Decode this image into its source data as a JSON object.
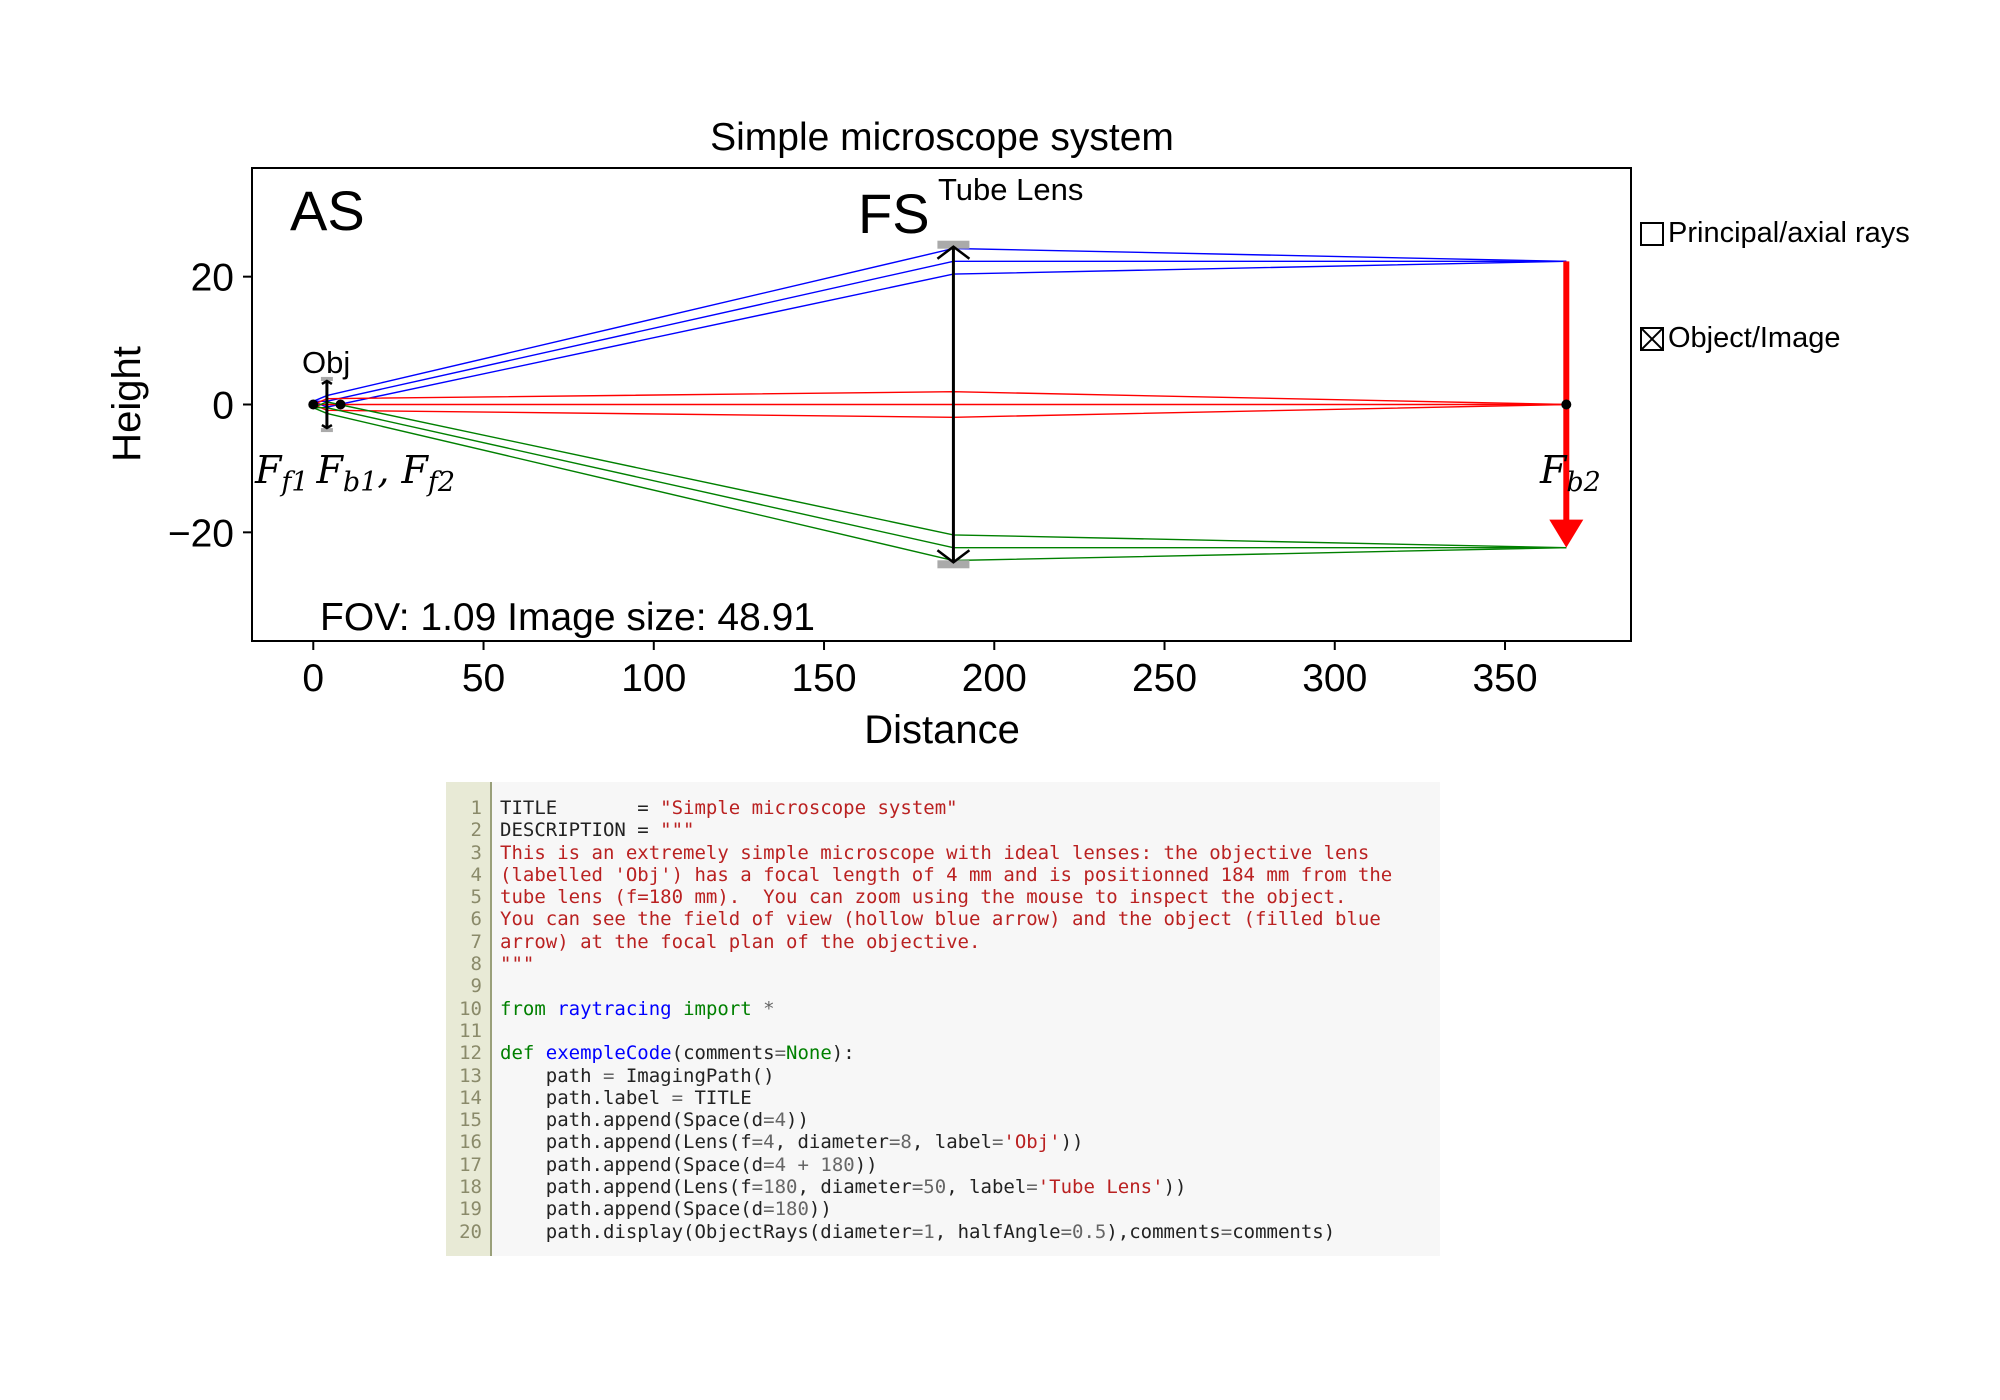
{
  "chart_data": {
    "type": "line",
    "title": "Simple microscope system",
    "xlabel": "Distance",
    "ylabel": "Height",
    "xlim": [
      -18,
      387
    ],
    "ylim": [
      -37,
      37
    ],
    "xticks": [
      0,
      50,
      100,
      150,
      200,
      250,
      300,
      350
    ],
    "yticks": [
      -20,
      0,
      20
    ],
    "xtick_labels": [
      "0",
      "50",
      "100",
      "150",
      "200",
      "250",
      "300",
      "350"
    ],
    "ytick_labels": [
      "−20",
      "0",
      "20"
    ],
    "labels": {
      "as": "AS",
      "fs": "FS",
      "tube_lens": "Tube Lens",
      "obj": "Obj",
      "ff1": "F",
      "ff1_sub": "f1",
      "fb1": "F",
      "fb1_sub": "b1",
      "ff2": ", F",
      "ff2_sub": "f2",
      "fb2": "F",
      "fb2_sub": "b2",
      "fov": "FOV: 1.09 Image size: 48.91"
    },
    "lenses": [
      {
        "name": "Obj",
        "x": 4,
        "diameter": 8
      },
      {
        "name": "Tube Lens",
        "x": 188,
        "diameter": 50
      }
    ],
    "focal_points": [
      0,
      8,
      368
    ],
    "image": {
      "x": 368,
      "y_top": 22.4,
      "y_bottom": -22.4,
      "color": "#ff0000"
    },
    "ray_colors": {
      "blue": "#0000ff",
      "red": "#ff0000",
      "green": "#008000",
      "black": "#000000"
    },
    "ray_bundles": [
      {
        "color": "blue",
        "rays": [
          [
            [
              0,
              0.5
            ],
            [
              4,
              1.4
            ],
            [
              188,
              24.4
            ],
            [
              368,
              22.4
            ]
          ],
          [
            [
              0,
              0.5
            ],
            [
              4,
              0.5
            ],
            [
              188,
              22.4
            ],
            [
              368,
              22.4
            ]
          ],
          [
            [
              0,
              0.5
            ],
            [
              4,
              -0.4
            ],
            [
              188,
              20.4
            ],
            [
              368,
              22.4
            ]
          ]
        ]
      },
      {
        "color": "red",
        "rays": [
          [
            [
              0,
              0
            ],
            [
              4,
              0.9
            ],
            [
              188,
              2.0
            ],
            [
              368,
              0
            ]
          ],
          [
            [
              0,
              0
            ],
            [
              4,
              0
            ],
            [
              188,
              0
            ],
            [
              368,
              0
            ]
          ],
          [
            [
              0,
              0
            ],
            [
              4,
              -0.9
            ],
            [
              188,
              -2.0
            ],
            [
              368,
              0
            ]
          ]
        ]
      },
      {
        "color": "green",
        "rays": [
          [
            [
              0,
              -0.5
            ],
            [
              4,
              0.4
            ],
            [
              188,
              -20.4
            ],
            [
              368,
              -22.4
            ]
          ],
          [
            [
              0,
              -0.5
            ],
            [
              4,
              -0.5
            ],
            [
              188,
              -22.4
            ],
            [
              368,
              -22.4
            ]
          ],
          [
            [
              0,
              -0.5
            ],
            [
              4,
              -1.4
            ],
            [
              188,
              -24.4
            ],
            [
              368,
              -22.4
            ]
          ]
        ]
      }
    ],
    "legend": [
      {
        "label": "Principal/axial rays",
        "checked": false
      },
      {
        "label": "Object/Image",
        "checked": true
      }
    ],
    "legend_placement": "right"
  },
  "legend": {
    "principal": "Principal/axial rays",
    "object_image": "Object/Image"
  },
  "code": {
    "line_numbers": [
      "1",
      "2",
      "3",
      "4",
      "5",
      "6",
      "7",
      "8",
      "9",
      "10",
      "11",
      "12",
      "13",
      "14",
      "15",
      "16",
      "17",
      "18",
      "19",
      "20"
    ],
    "lines": [
      [
        {
          "t": "TITLE       = ",
          "c": ""
        },
        {
          "t": "\"Simple microscope system\"",
          "c": "str"
        }
      ],
      [
        {
          "t": "DESCRIPTION = ",
          "c": ""
        },
        {
          "t": "\"\"\"",
          "c": "str"
        }
      ],
      [
        {
          "t": "This is an extremely simple microscope with ideal lenses: the objective lens",
          "c": "str"
        }
      ],
      [
        {
          "t": "(labelled 'Obj') has a focal length of 4 mm and is positionned 184 mm from the",
          "c": "str"
        }
      ],
      [
        {
          "t": "tube lens (f=180 mm).  You can zoom using the mouse to inspect the object.",
          "c": "str"
        }
      ],
      [
        {
          "t": "You can see the field of view (hollow blue arrow) and the object (filled blue",
          "c": "str"
        }
      ],
      [
        {
          "t": "arrow) at the focal plan of the objective.",
          "c": "str"
        }
      ],
      [
        {
          "t": "\"\"\"",
          "c": "str"
        }
      ],
      [],
      [
        {
          "t": "from",
          "c": "kw"
        },
        {
          "t": " ",
          "c": ""
        },
        {
          "t": "raytracing",
          "c": "fn"
        },
        {
          "t": " ",
          "c": ""
        },
        {
          "t": "import",
          "c": "kw"
        },
        {
          "t": " ",
          "c": ""
        },
        {
          "t": "*",
          "c": "op"
        }
      ],
      [],
      [
        {
          "t": "def",
          "c": "kw"
        },
        {
          "t": " ",
          "c": ""
        },
        {
          "t": "exempleCode",
          "c": "fn"
        },
        {
          "t": "(comments",
          "c": ""
        },
        {
          "t": "=",
          "c": "op"
        },
        {
          "t": "None",
          "c": "kw"
        },
        {
          "t": "):",
          "c": ""
        }
      ],
      [
        {
          "t": "    path ",
          "c": ""
        },
        {
          "t": "=",
          "c": "op"
        },
        {
          "t": " ImagingPath()",
          "c": ""
        }
      ],
      [
        {
          "t": "    path.label ",
          "c": ""
        },
        {
          "t": "=",
          "c": "op"
        },
        {
          "t": " TITLE",
          "c": ""
        }
      ],
      [
        {
          "t": "    path.append(Space(d",
          "c": ""
        },
        {
          "t": "=",
          "c": "op"
        },
        {
          "t": "4",
          "c": "num"
        },
        {
          "t": "))",
          "c": ""
        }
      ],
      [
        {
          "t": "    path.append(Lens(f",
          "c": ""
        },
        {
          "t": "=",
          "c": "op"
        },
        {
          "t": "4",
          "c": "num"
        },
        {
          "t": ", diameter",
          "c": ""
        },
        {
          "t": "=",
          "c": "op"
        },
        {
          "t": "8",
          "c": "num"
        },
        {
          "t": ", label",
          "c": ""
        },
        {
          "t": "=",
          "c": "op"
        },
        {
          "t": "'Obj'",
          "c": "str"
        },
        {
          "t": "))",
          "c": ""
        }
      ],
      [
        {
          "t": "    path.append(Space(d",
          "c": ""
        },
        {
          "t": "=",
          "c": "op"
        },
        {
          "t": "4",
          "c": "num"
        },
        {
          "t": " ",
          "c": ""
        },
        {
          "t": "+",
          "c": "op"
        },
        {
          "t": " ",
          "c": ""
        },
        {
          "t": "180",
          "c": "num"
        },
        {
          "t": "))",
          "c": ""
        }
      ],
      [
        {
          "t": "    path.append(Lens(f",
          "c": ""
        },
        {
          "t": "=",
          "c": "op"
        },
        {
          "t": "180",
          "c": "num"
        },
        {
          "t": ", diameter",
          "c": ""
        },
        {
          "t": "=",
          "c": "op"
        },
        {
          "t": "50",
          "c": "num"
        },
        {
          "t": ", label",
          "c": ""
        },
        {
          "t": "=",
          "c": "op"
        },
        {
          "t": "'Tube Lens'",
          "c": "str"
        },
        {
          "t": "))",
          "c": ""
        }
      ],
      [
        {
          "t": "    path.append(Space(d",
          "c": ""
        },
        {
          "t": "=",
          "c": "op"
        },
        {
          "t": "180",
          "c": "num"
        },
        {
          "t": "))",
          "c": ""
        }
      ],
      [
        {
          "t": "    path.display(ObjectRays(diameter",
          "c": ""
        },
        {
          "t": "=",
          "c": "op"
        },
        {
          "t": "1",
          "c": "num"
        },
        {
          "t": ", halfAngle",
          "c": ""
        },
        {
          "t": "=",
          "c": "op"
        },
        {
          "t": "0.5",
          "c": "num"
        },
        {
          "t": "),comments",
          "c": ""
        },
        {
          "t": "=",
          "c": "op"
        },
        {
          "t": "comments)",
          "c": ""
        }
      ]
    ]
  }
}
